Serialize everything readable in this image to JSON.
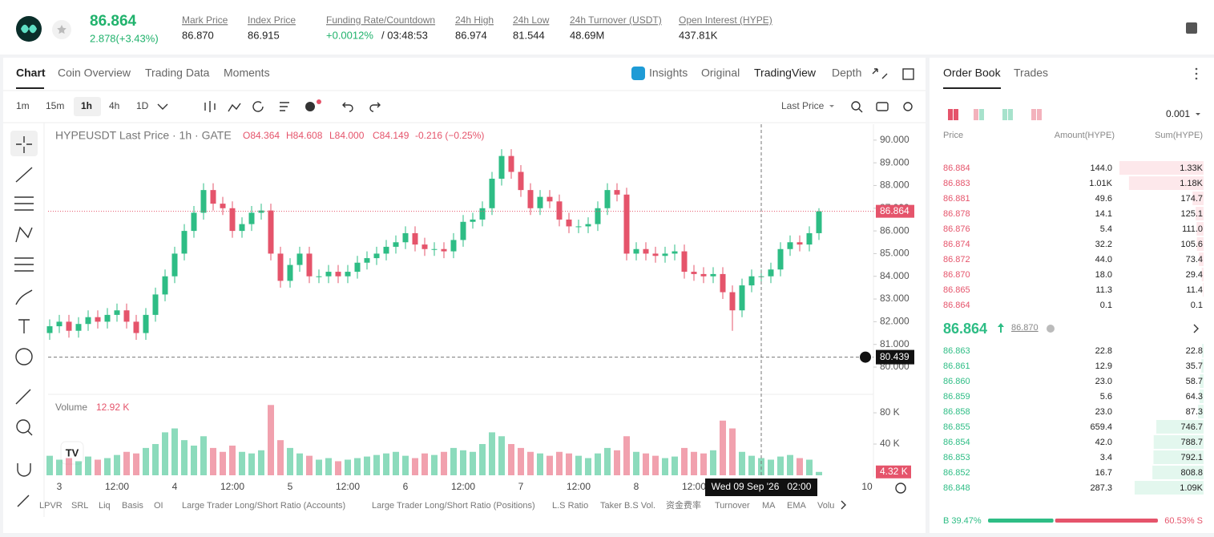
{
  "header": {
    "price": "86.864",
    "change": "2.878(+3.43%)",
    "stats": [
      {
        "label": "Mark Price",
        "value": "86.870"
      },
      {
        "label": "Index Price",
        "value": "86.915"
      },
      {
        "label": "Funding Rate/Countdown",
        "value": "+0.0012%",
        "extra": "/ 03:48:53"
      },
      {
        "label": "24h High",
        "value": "86.974"
      },
      {
        "label": "24h Low",
        "value": "81.544"
      },
      {
        "label": "24h Turnover (USDT)",
        "value": "48.69M"
      },
      {
        "label": "Open Interest (HYPE)",
        "value": "437.81K"
      }
    ]
  },
  "tabs": [
    "Chart",
    "Coin Overview",
    "Trading Data",
    "Moments"
  ],
  "view_tabs": [
    "Insights",
    "Original",
    "TradingView",
    "Depth"
  ],
  "intervals": [
    "1m",
    "15m",
    "1h",
    "4h",
    "1D"
  ],
  "price_type": "Last Price",
  "indicators": [
    "LPVR",
    "SRL",
    "Liq",
    "Basis",
    "OI",
    "Large Trader Long/Short Ratio (Accounts)",
    "Large Trader Long/Short Ratio (Positions)",
    "L.S Ratio",
    "Taker B.S Vol.",
    "资金费率",
    "Turnover",
    "MA",
    "EMA",
    "Volu"
  ],
  "chart_data": {
    "type": "candlestick",
    "title": "HYPEUSDT Last Price · 1h · GATE",
    "legend": {
      "open": "O84.364",
      "high": "H84.608",
      "low": "L84.000",
      "close": "C84.149",
      "change": "-0.216 (−0.25%)"
    },
    "colors": {
      "up": "#2ebd85",
      "down": "#e5546b"
    },
    "categories": [
      null,
      "3",
      null,
      null,
      null,
      null,
      null,
      "12:00",
      null,
      null,
      null,
      null,
      null,
      "4",
      null,
      null,
      null,
      null,
      null,
      "12:00",
      null,
      null,
      null,
      null,
      null,
      "5",
      null,
      null,
      null,
      null,
      null,
      "12:00",
      null,
      null,
      null,
      null,
      null,
      "6",
      null,
      null,
      null,
      null,
      null,
      "12:00",
      null,
      null,
      null,
      null,
      null,
      "7",
      null,
      null,
      null,
      null,
      null,
      "12:00",
      null,
      null,
      null,
      null,
      null,
      "8",
      null,
      null,
      null,
      null,
      null,
      "12:00",
      null,
      null,
      null,
      null,
      null,
      null,
      null,
      null,
      null,
      null,
      null,
      null,
      null,
      null,
      null,
      null,
      null,
      "10"
    ],
    "open": [
      81.5,
      81.8,
      82.0,
      81.6,
      81.9,
      82.2,
      82.0,
      82.3,
      82.5,
      82.0,
      81.5,
      82.3,
      83.2,
      84.0,
      85.0,
      86.0,
      86.8,
      87.8,
      87.2,
      87.0,
      86.0,
      86.3,
      86.8,
      86.9,
      85.0,
      83.8,
      84.5,
      85.0,
      84.0,
      84.0,
      84.2,
      84.0,
      84.2,
      84.6,
      84.8,
      85.0,
      85.3,
      85.5,
      85.9,
      85.4,
      85.2,
      85.2,
      85.1,
      85.6,
      86.4,
      86.5,
      87.0,
      88.3,
      89.3,
      88.6,
      87.8,
      87.0,
      87.5,
      87.3,
      86.5,
      86.2,
      86.2,
      86.3,
      87.0,
      87.8,
      87.6,
      85.0,
      85.2,
      85.0,
      84.9,
      85.0,
      85.1,
      84.2,
      84.1,
      84.0,
      84.1,
      83.3,
      82.5,
      83.6,
      84.0,
      84.0,
      84.3,
      85.2,
      85.5,
      85.4,
      85.9,
      null,
      null,
      null,
      null,
      null
    ],
    "high": [
      82.1,
      82.3,
      82.3,
      82.2,
      82.5,
      82.5,
      82.6,
      82.8,
      82.8,
      82.3,
      82.6,
      83.5,
      84.3,
      85.3,
      86.3,
      87.1,
      88.1,
      88.1,
      87.5,
      87.3,
      86.6,
      87.1,
      87.2,
      87.2,
      85.3,
      84.8,
      85.3,
      85.3,
      84.3,
      84.5,
      84.5,
      84.5,
      84.9,
      85.1,
      85.3,
      85.6,
      85.8,
      86.2,
      86.2,
      85.7,
      85.5,
      85.5,
      85.9,
      86.7,
      86.8,
      87.3,
      88.6,
      89.6,
      89.6,
      88.9,
      88.1,
      87.8,
      87.8,
      87.6,
      86.8,
      86.5,
      86.6,
      87.3,
      88.1,
      88.1,
      87.9,
      85.5,
      85.5,
      85.3,
      85.3,
      85.4,
      85.4,
      84.5,
      84.4,
      84.4,
      84.4,
      83.6,
      83.9,
      84.3,
      84.3,
      84.6,
      85.5,
      85.8,
      85.8,
      86.2,
      87.0,
      null,
      null,
      null,
      null,
      null
    ],
    "low": [
      81.2,
      81.5,
      81.3,
      81.3,
      81.6,
      81.7,
      81.7,
      82.0,
      81.7,
      81.2,
      81.2,
      82.0,
      82.9,
      83.7,
      84.7,
      85.7,
      86.5,
      86.9,
      86.7,
      85.7,
      85.7,
      86.0,
      86.5,
      84.7,
      83.5,
      83.5,
      84.2,
      83.7,
      83.7,
      83.7,
      83.7,
      83.7,
      83.9,
      84.3,
      84.5,
      84.7,
      85.0,
      85.2,
      85.1,
      84.9,
      84.9,
      84.8,
      84.8,
      85.3,
      86.1,
      86.2,
      86.7,
      88.0,
      88.3,
      87.5,
      86.7,
      86.7,
      87.0,
      86.2,
      85.9,
      85.9,
      85.9,
      86.0,
      86.7,
      87.3,
      84.7,
      84.7,
      84.7,
      84.6,
      84.6,
      84.7,
      83.9,
      83.8,
      83.7,
      83.7,
      83.0,
      81.6,
      82.2,
      83.3,
      83.7,
      83.7,
      84.0,
      84.9,
      85.1,
      85.1,
      85.6,
      null,
      null,
      null,
      null,
      null
    ],
    "close": [
      81.8,
      82.0,
      81.6,
      81.9,
      82.2,
      82.0,
      82.3,
      82.5,
      82.0,
      81.5,
      82.3,
      83.2,
      84.0,
      85.0,
      86.0,
      86.8,
      87.8,
      87.2,
      87.0,
      86.0,
      86.3,
      86.8,
      86.9,
      85.0,
      83.8,
      84.5,
      85.0,
      84.0,
      84.0,
      84.2,
      84.0,
      84.2,
      84.6,
      84.8,
      85.0,
      85.3,
      85.5,
      85.9,
      85.4,
      85.2,
      85.2,
      85.1,
      85.6,
      86.4,
      86.5,
      87.0,
      88.3,
      89.3,
      88.6,
      87.8,
      87.0,
      87.5,
      87.3,
      86.5,
      86.2,
      86.2,
      86.3,
      87.0,
      87.8,
      87.6,
      85.0,
      85.2,
      85.0,
      84.9,
      85.0,
      85.1,
      84.2,
      84.1,
      84.0,
      84.1,
      83.3,
      82.5,
      83.6,
      84.0,
      84.0,
      84.3,
      85.2,
      85.5,
      85.4,
      85.9,
      86.864,
      null,
      null,
      null,
      null,
      null
    ],
    "volume": [
      25,
      20,
      22,
      18,
      24,
      20,
      22,
      26,
      30,
      28,
      35,
      40,
      55,
      60,
      45,
      38,
      50,
      35,
      30,
      38,
      30,
      28,
      32,
      90,
      45,
      35,
      28,
      25,
      20,
      22,
      18,
      20,
      22,
      24,
      26,
      28,
      30,
      25,
      22,
      28,
      26,
      30,
      35,
      32,
      30,
      40,
      55,
      50,
      40,
      35,
      30,
      28,
      25,
      30,
      28,
      25,
      22,
      28,
      35,
      32,
      50,
      30,
      28,
      25,
      22,
      24,
      35,
      30,
      28,
      32,
      70,
      60,
      30,
      25,
      22,
      20,
      24,
      26,
      22,
      20,
      4.32,
      null,
      null,
      null,
      null,
      null
    ],
    "ylim": [
      78.8,
      90.7
    ],
    "yticks": [
      {
        "value": 90,
        "label": "90.000"
      },
      {
        "value": 89,
        "label": "89.000"
      },
      {
        "value": 88,
        "label": "88.000"
      },
      {
        "value": 87,
        "label": "87.000"
      },
      {
        "value": 86,
        "label": "86.000"
      },
      {
        "value": 85,
        "label": "85.000"
      },
      {
        "value": 84,
        "label": "84.000"
      },
      {
        "value": 83,
        "label": "83.000"
      },
      {
        "value": 82,
        "label": "82.000"
      },
      {
        "value": 81,
        "label": "81.000"
      },
      {
        "value": 80,
        "label": "80.000"
      }
    ],
    "volume_title": "Volume",
    "volume_legend": "12.92 K",
    "last_volume_label": "4.32 K",
    "volume_ylim": [
      0,
      98
    ],
    "volume_yticks": [
      {
        "value": 80,
        "label": "80 K"
      },
      {
        "value": 40,
        "label": "40 K"
      }
    ],
    "last_price": 86.864,
    "crosshair_price": 80.439,
    "crosshair_time": "Wed 09 Sep '26   02:00"
  },
  "order_book": {
    "tabs": [
      "Order Book",
      "Trades"
    ],
    "precision": "0.001",
    "headers": [
      "Price",
      "Amount(HYPE)",
      "Sum(HYPE)"
    ],
    "asks": [
      {
        "price": "86.884",
        "amount": {
          "value": 144,
          "label": "144.0"
        },
        "sum": {
          "value": 1330,
          "label": "1.33K"
        }
      },
      {
        "price": "86.883",
        "amount": {
          "value": 1010,
          "label": "1.01K"
        },
        "sum": {
          "value": 1180,
          "label": "1.18K"
        }
      },
      {
        "price": "86.881",
        "amount": 49.6,
        "sum": 174.7
      },
      {
        "price": "86.878",
        "amount": 14.1,
        "sum": 125.1
      },
      {
        "price": "86.876",
        "amount": 5.4,
        "sum": {
          "value": 111,
          "label": "111.0"
        }
      },
      {
        "price": "86.874",
        "amount": 32.2,
        "sum": 105.6
      },
      {
        "price": "86.872",
        "amount": {
          "value": 44,
          "label": "44.0"
        },
        "sum": 73.4
      },
      {
        "price": "86.870",
        "amount": {
          "value": 18,
          "label": "18.0"
        },
        "sum": 29.4
      },
      {
        "price": "86.865",
        "amount": 11.3,
        "sum": 11.4
      },
      {
        "price": "86.864",
        "amount": 0.1,
        "sum": 0.1
      }
    ],
    "mid_price": "86.864",
    "mark_price": "86.870",
    "bids": [
      {
        "price": "86.863",
        "amount": 22.8,
        "sum": 22.8
      },
      {
        "price": "86.861",
        "amount": 12.9,
        "sum": 35.7
      },
      {
        "price": "86.860",
        "amount": {
          "value": 23,
          "label": "23.0"
        },
        "sum": 58.7
      },
      {
        "price": "86.859",
        "amount": 5.6,
        "sum": 64.3
      },
      {
        "price": "86.858",
        "amount": {
          "value": 23,
          "label": "23.0"
        },
        "sum": 87.3
      },
      {
        "price": "86.855",
        "amount": 659.4,
        "sum": 746.7
      },
      {
        "price": "86.854",
        "amount": {
          "value": 42,
          "label": "42.0"
        },
        "sum": 788.7
      },
      {
        "price": "86.853",
        "amount": 3.4,
        "sum": 792.1
      },
      {
        "price": "86.852",
        "amount": 16.7,
        "sum": 808.8
      },
      {
        "price": "86.848",
        "amount": 287.3,
        "sum": {
          "value": 1090,
          "label": "1.09K"
        }
      }
    ],
    "buy_ratio": {
      "value": 39.47,
      "label": "B 39.47%"
    },
    "sell_ratio": {
      "value": 60.53,
      "label": "60.53% S"
    }
  }
}
